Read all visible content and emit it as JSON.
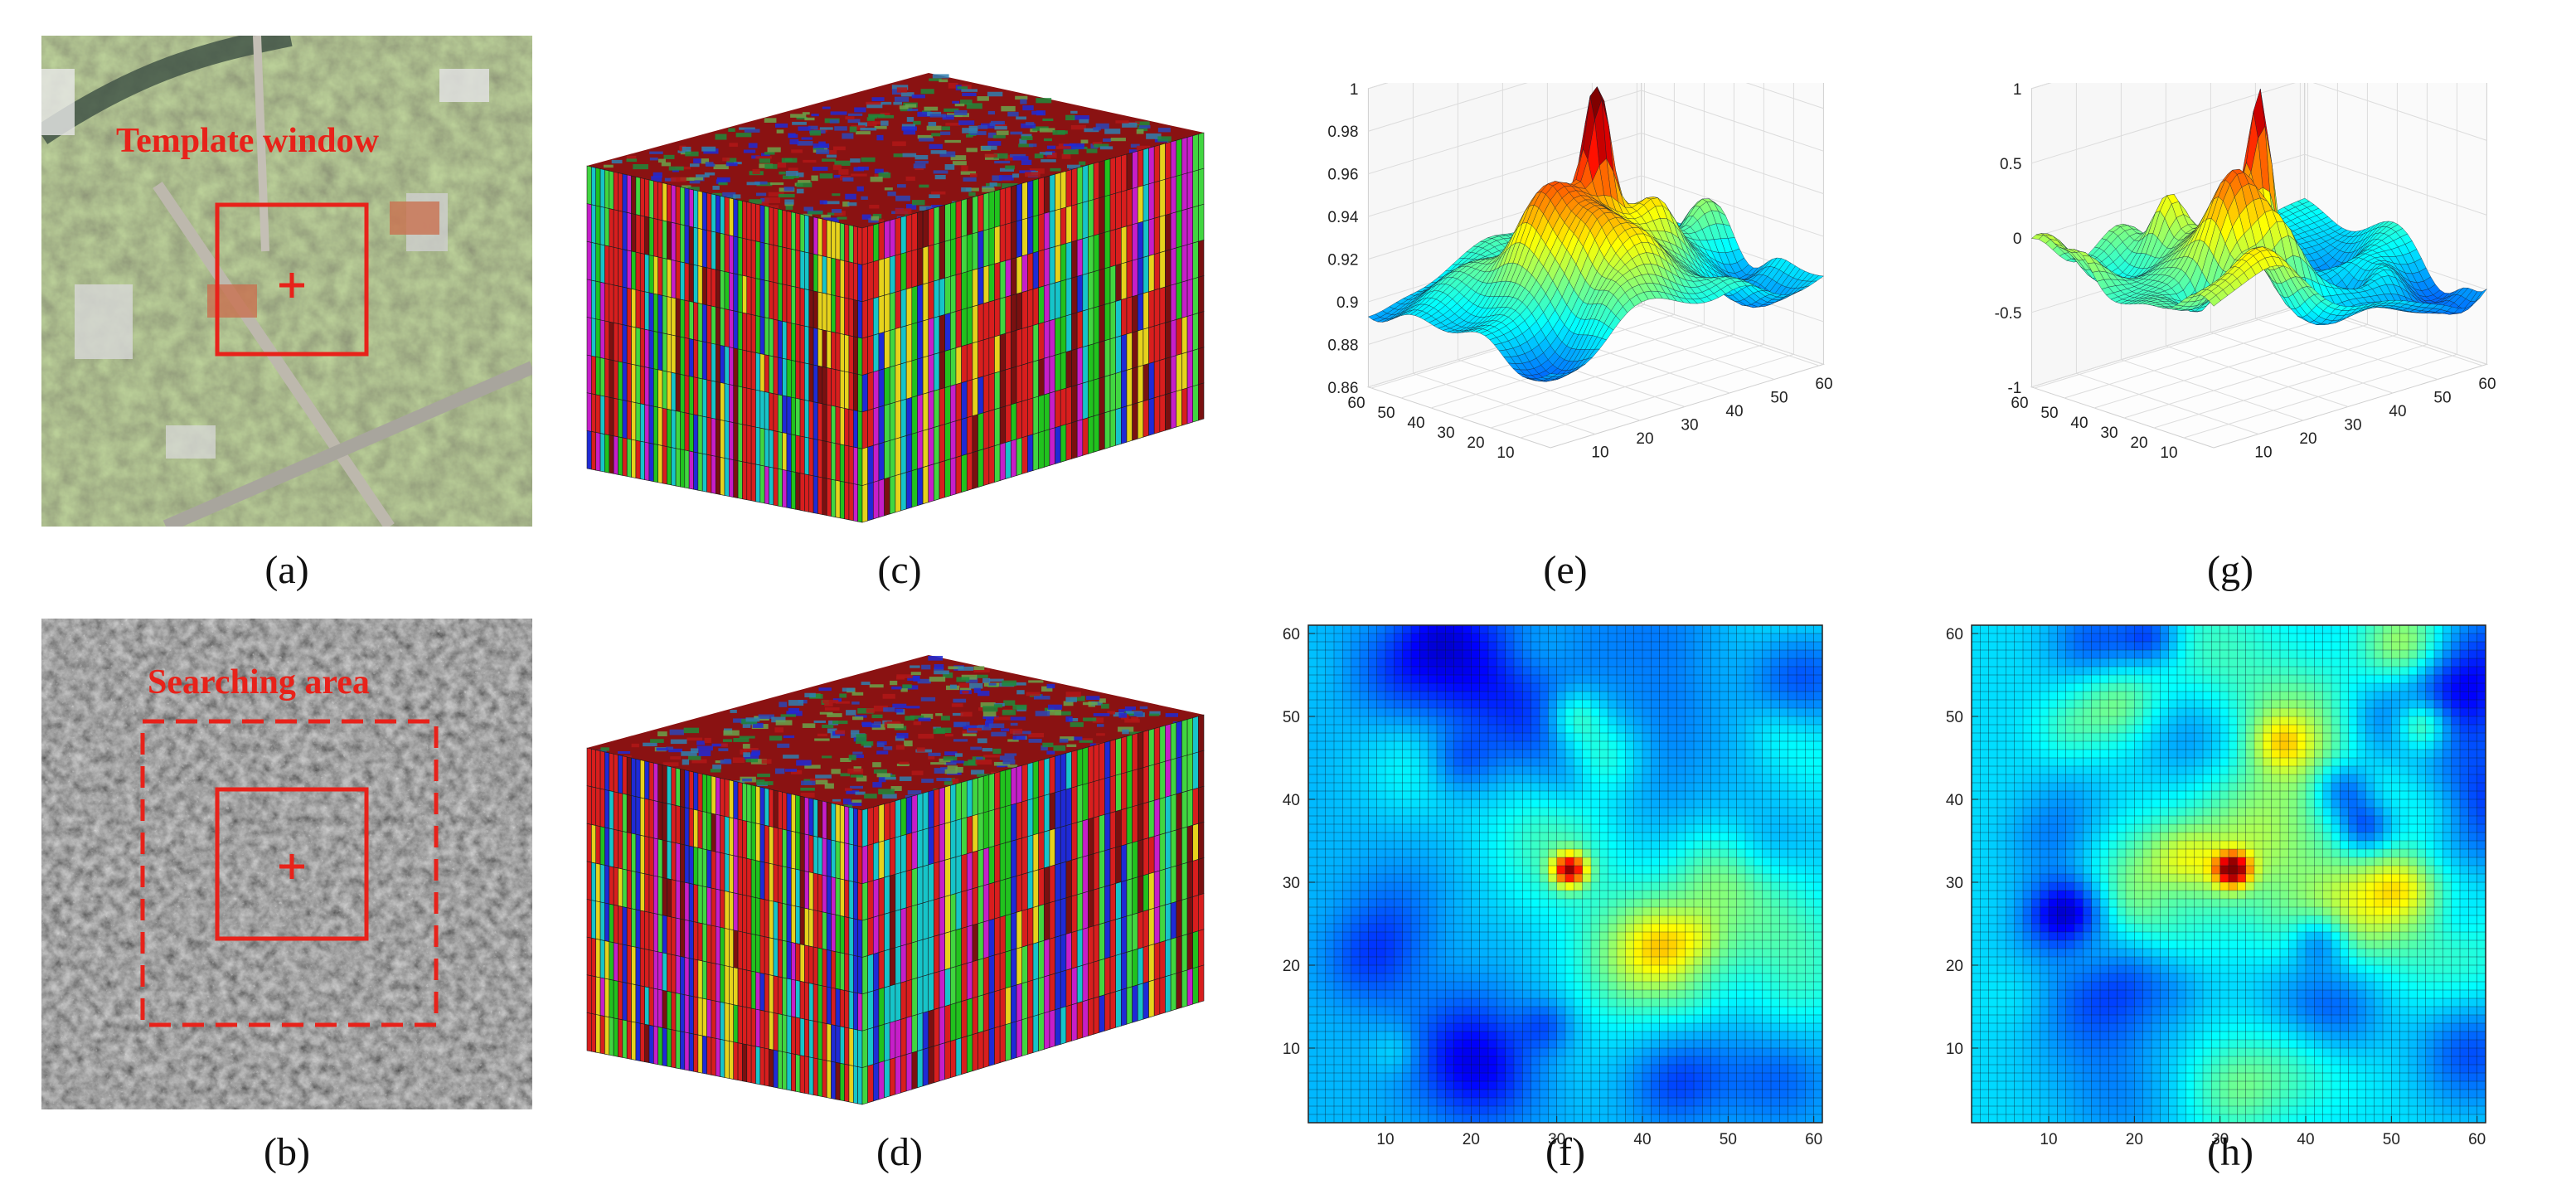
{
  "figure": {
    "captions": {
      "a": "(a)",
      "b": "(b)",
      "c": "(c)",
      "d": "(d)",
      "e": "(e)",
      "f": "(f)",
      "g": "(g)",
      "h": "(h)"
    },
    "overlay_labels": {
      "template_window": "Template window",
      "searching_area": "Searching area"
    }
  },
  "chart_data": [
    {
      "panel": "e",
      "type": "surface",
      "x_ticks": [
        "10",
        "20",
        "30",
        "40",
        "50",
        "60"
      ],
      "y_ticks": [
        "10",
        "20",
        "30",
        "40",
        "50",
        "60"
      ],
      "z_ticks": [
        "0.86",
        "0.88",
        "0.9",
        "0.92",
        "0.94",
        "0.96",
        "0.98",
        "1"
      ],
      "zlim": [
        0.86,
        1.0
      ],
      "peak": {
        "x": 31,
        "y": 31,
        "z": 1.0
      }
    },
    {
      "panel": "f",
      "type": "heatmap",
      "x_ticks": [
        "10",
        "20",
        "30",
        "40",
        "50",
        "60"
      ],
      "y_ticks": [
        "10",
        "20",
        "30",
        "40",
        "50",
        "60"
      ],
      "xlim": [
        1,
        61
      ],
      "ylim": [
        1,
        61
      ],
      "peak": {
        "x": 31,
        "y": 31
      }
    },
    {
      "panel": "g",
      "type": "surface",
      "x_ticks": [
        "10",
        "20",
        "30",
        "40",
        "50",
        "60"
      ],
      "y_ticks": [
        "10",
        "20",
        "30",
        "40",
        "50",
        "60"
      ],
      "z_ticks": [
        "-1",
        "-0.5",
        "0",
        "0.5",
        "1"
      ],
      "zlim": [
        -1,
        1
      ],
      "peak": {
        "x": 31,
        "y": 31,
        "z": 1.0
      }
    },
    {
      "panel": "h",
      "type": "heatmap",
      "x_ticks": [
        "10",
        "20",
        "30",
        "40",
        "50",
        "60"
      ],
      "y_ticks": [
        "10",
        "20",
        "30",
        "40",
        "50",
        "60"
      ],
      "xlim": [
        1,
        61
      ],
      "ylim": [
        1,
        61
      ],
      "peak": {
        "x": 31,
        "y": 31
      }
    }
  ]
}
